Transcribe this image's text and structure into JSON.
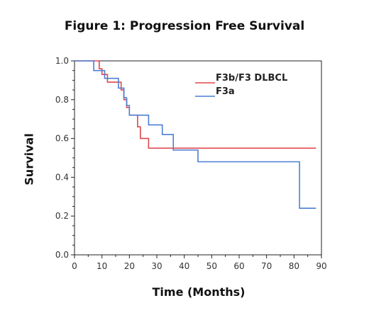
{
  "figure_title": "Figure 1: Progression Free Survival",
  "chart_data": {
    "type": "line",
    "title": "Figure 1: Progression Free Survival",
    "xlabel": "Time (Months)",
    "ylabel": "Survival",
    "xlim": [
      0,
      90
    ],
    "ylim": [
      0.0,
      1.0
    ],
    "x_ticks": [
      0,
      10,
      20,
      30,
      40,
      50,
      60,
      70,
      80,
      90
    ],
    "y_ticks": [
      0.0,
      0.2,
      0.4,
      0.6,
      0.8,
      1.0
    ],
    "x_tick_labels": [
      "0",
      "10",
      "20",
      "30",
      "40",
      "50",
      "60",
      "70",
      "80",
      "90"
    ],
    "y_tick_labels": [
      "0.0",
      "0.2",
      "0.4",
      "0.6",
      "0.8",
      "1.0"
    ],
    "grid": false,
    "legend_position": "top-right",
    "series": [
      {
        "name": "F3b/F3 DLBCL",
        "color": "#e0474c",
        "step_points": [
          [
            0,
            1.0
          ],
          [
            9,
            1.0
          ],
          [
            9,
            0.96
          ],
          [
            10,
            0.96
          ],
          [
            10,
            0.93
          ],
          [
            12,
            0.93
          ],
          [
            12,
            0.89
          ],
          [
            17,
            0.89
          ],
          [
            17,
            0.85
          ],
          [
            18,
            0.85
          ],
          [
            18,
            0.8
          ],
          [
            19,
            0.8
          ],
          [
            19,
            0.76
          ],
          [
            20,
            0.76
          ],
          [
            20,
            0.72
          ],
          [
            23,
            0.72
          ],
          [
            23,
            0.66
          ],
          [
            24,
            0.66
          ],
          [
            24,
            0.6
          ],
          [
            27,
            0.6
          ],
          [
            27,
            0.55
          ],
          [
            88,
            0.55
          ]
        ]
      },
      {
        "name": "F3a",
        "color": "#4a7fd4",
        "step_points": [
          [
            0,
            1.0
          ],
          [
            7,
            1.0
          ],
          [
            7,
            0.95
          ],
          [
            11,
            0.95
          ],
          [
            11,
            0.91
          ],
          [
            16,
            0.91
          ],
          [
            16,
            0.86
          ],
          [
            18,
            0.86
          ],
          [
            18,
            0.81
          ],
          [
            19,
            0.81
          ],
          [
            19,
            0.77
          ],
          [
            20,
            0.77
          ],
          [
            20,
            0.72
          ],
          [
            27,
            0.72
          ],
          [
            27,
            0.67
          ],
          [
            32,
            0.67
          ],
          [
            32,
            0.62
          ],
          [
            36,
            0.62
          ],
          [
            36,
            0.54
          ],
          [
            45,
            0.54
          ],
          [
            45,
            0.48
          ],
          [
            82,
            0.48
          ],
          [
            82,
            0.24
          ],
          [
            88,
            0.24
          ]
        ]
      }
    ]
  }
}
